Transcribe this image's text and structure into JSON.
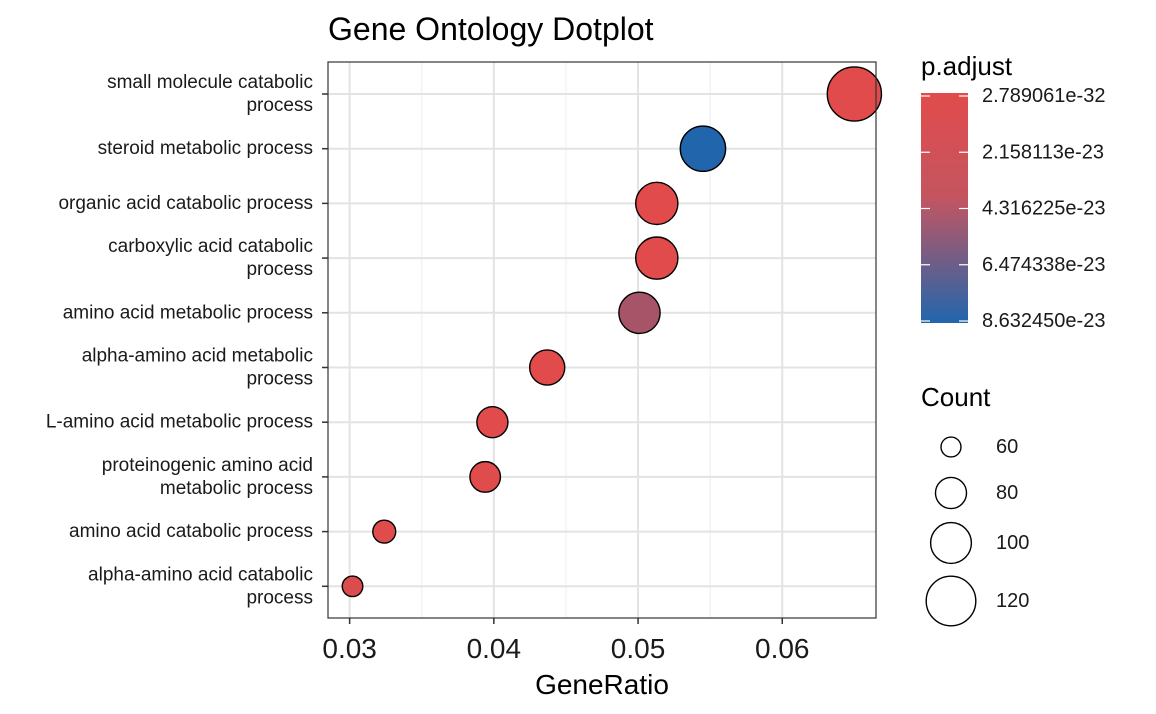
{
  "chart_data": {
    "type": "scatter",
    "title": "Gene Ontology Dotplot",
    "xlabel": "GeneRatio",
    "ylabel": "",
    "xlim": [
      0.0285,
      0.0665
    ],
    "x_ticks": [
      0.03,
      0.04,
      0.05,
      0.06
    ],
    "x_tick_labels": [
      "0.03",
      "0.04",
      "0.05",
      "0.06"
    ],
    "grid": true,
    "categories": [
      [
        "small molecule catabolic",
        "process"
      ],
      [
        "steroid metabolic process"
      ],
      [
        "organic acid catabolic process"
      ],
      [
        "carboxylic acid catabolic",
        "process"
      ],
      [
        "amino acid metabolic process"
      ],
      [
        "alpha-amino acid metabolic",
        "process"
      ],
      [
        "L-amino acid metabolic process"
      ],
      [
        "proteinogenic amino acid",
        "metabolic process"
      ],
      [
        "amino acid catabolic process"
      ],
      [
        "alpha-amino acid catabolic",
        "process"
      ]
    ],
    "points": [
      {
        "x": 0.065,
        "count": 131,
        "p_adjust": 2.789061e-32
      },
      {
        "x": 0.0545,
        "count": 110,
        "p_adjust": 8.63245e-23
      },
      {
        "x": 0.0513,
        "count": 103,
        "p_adjust": 5e-30
      },
      {
        "x": 0.0513,
        "count": 103,
        "p_adjust": 5e-30
      },
      {
        "x": 0.0501,
        "count": 101,
        "p_adjust": 2.6e-23
      },
      {
        "x": 0.0437,
        "count": 88,
        "p_adjust": 4e-27
      },
      {
        "x": 0.0399,
        "count": 80,
        "p_adjust": 8e-26
      },
      {
        "x": 0.0394,
        "count": 79,
        "p_adjust": 2.5e-25
      },
      {
        "x": 0.0324,
        "count": 65,
        "p_adjust": 3e-25
      },
      {
        "x": 0.0302,
        "count": 61,
        "p_adjust": 2e-24
      }
    ],
    "legend_position": "right",
    "color_legend": {
      "title": "p.adjust",
      "labels": [
        "2.789061e-32",
        "2.158113e-23",
        "4.316225e-23",
        "6.474338e-23",
        "8.632450e-23"
      ],
      "low_color": "#e14b4b",
      "high_color": "#2166ac"
    },
    "size_legend": {
      "title": "Count",
      "values": [
        60,
        80,
        100,
        120
      ],
      "labels": [
        "60",
        "80",
        "100",
        "120"
      ]
    }
  }
}
